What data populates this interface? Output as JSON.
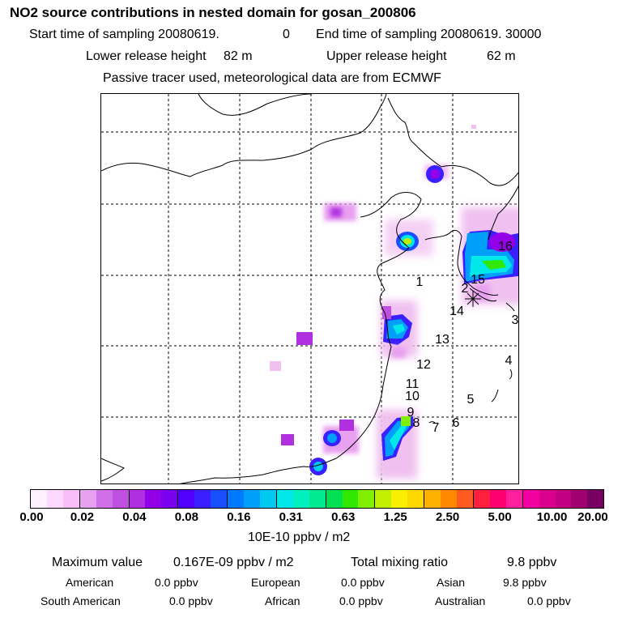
{
  "header": {
    "title": "NO2 source contributions in nested domain for gosan_200806",
    "start_label": "Start time of sampling 20080619.",
    "start_value": "0",
    "end_label": "End time of sampling 20080619. 30000",
    "lower_label": "Lower release height",
    "lower_value": "82 m",
    "upper_label": "Upper release height",
    "upper_value": "62 m",
    "passive_note": "Passive tracer used, meteorological data are from ECMWF"
  },
  "map": {
    "source_labels": [
      "1",
      "2",
      "3",
      "4",
      "5",
      "6",
      "7",
      "8",
      "9",
      "10",
      "11",
      "12",
      "13",
      "14",
      "15",
      "16"
    ],
    "receptor": "gosan"
  },
  "colorbar": {
    "tick_labels": [
      "0.00",
      "0.02",
      "0.04",
      "0.08",
      "0.16",
      "0.31",
      "0.63",
      "1.25",
      "2.50",
      "5.00",
      "10.00",
      "20.00"
    ],
    "colors": [
      "#fff0ff",
      "#ffd8ff",
      "#f7bdf7",
      "#e8a0f0",
      "#d070e8",
      "#c050e0",
      "#b030e0",
      "#9400e8",
      "#7a00f0",
      "#5200ff",
      "#3a20ff",
      "#1850ff",
      "#0078ff",
      "#00a0f8",
      "#00c8f0",
      "#00e8e8",
      "#00f0c0",
      "#00e890",
      "#00e050",
      "#30e800",
      "#80f000",
      "#c0f000",
      "#f8f000",
      "#ffd800",
      "#ffb000",
      "#ff8800",
      "#ff5a20",
      "#ff2040",
      "#ff0070",
      "#ff20a0",
      "#f000a0",
      "#d8008c",
      "#c00080",
      "#a00070",
      "#780060"
    ],
    "divider_after": [
      3,
      6,
      9,
      12,
      15,
      18,
      21,
      24,
      27,
      30
    ],
    "units": "10E-10 ppbv / m2"
  },
  "stats": {
    "max_label": "Maximum value",
    "max_value": "0.167E-09 ppbv / m2",
    "total_label": "Total mixing ratio",
    "total_value": "9.8 ppbv",
    "regions": [
      {
        "name": "American",
        "value": "0.0 ppbv"
      },
      {
        "name": "European",
        "value": "0.0 ppbv"
      },
      {
        "name": "Asian",
        "value": "9.8 ppbv"
      },
      {
        "name": "South American",
        "value": "0.0 ppbv"
      },
      {
        "name": "African",
        "value": "0.0 ppbv"
      },
      {
        "name": "Australian",
        "value": "0.0 ppbv"
      }
    ]
  }
}
